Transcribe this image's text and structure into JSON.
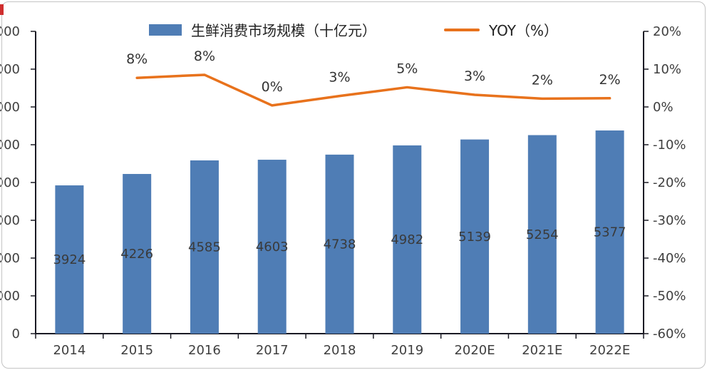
{
  "chart_data": {
    "type": "combo",
    "title": "",
    "categories": [
      "2014",
      "2015",
      "2016",
      "2017",
      "2018",
      "2019",
      "2020E",
      "2021E",
      "2022E"
    ],
    "bar_series": {
      "name": "生鲜消费市场规模（十亿元）",
      "values": [
        3924,
        4226,
        4585,
        4603,
        4738,
        4982,
        5139,
        5254,
        5377
      ],
      "value_labels": [
        "3924",
        "4226",
        "4585",
        "4603",
        "4738",
        "4982",
        "5139",
        "5254",
        "5377"
      ],
      "color": "#4f7db5",
      "axis": "left"
    },
    "line_series": {
      "name": "YOY（%）",
      "x_start_index": 1,
      "values": [
        7.7,
        8.5,
        0.4,
        2.9,
        5.2,
        3.2,
        2.2,
        2.3
      ],
      "point_labels": [
        "8%",
        "8%",
        "0%",
        "3%",
        "5%",
        "3%",
        "2%",
        "2%"
      ],
      "color": "#e8721c",
      "axis": "right"
    },
    "left_axis": {
      "min": 0,
      "max": 8000,
      "step": 1000,
      "tick_labels": [
        "000",
        "000",
        "000",
        "000",
        "000",
        "000",
        "000",
        "000",
        "0"
      ]
    },
    "right_axis": {
      "min": -60,
      "max": 20,
      "step": 10,
      "tick_labels": [
        "20%",
        "10%",
        "0%",
        "-10%",
        "-20%",
        "-30%",
        "-40%",
        "-50%",
        "-60%"
      ]
    },
    "legend": [
      {
        "label": "生鲜消费市场规模（十亿元）",
        "type": "bar"
      },
      {
        "label": "YOY（%）",
        "type": "line"
      }
    ],
    "grid": false,
    "legend_position": "top",
    "axis_color": "#1a1a24",
    "label_color": "#3f3f3f"
  }
}
